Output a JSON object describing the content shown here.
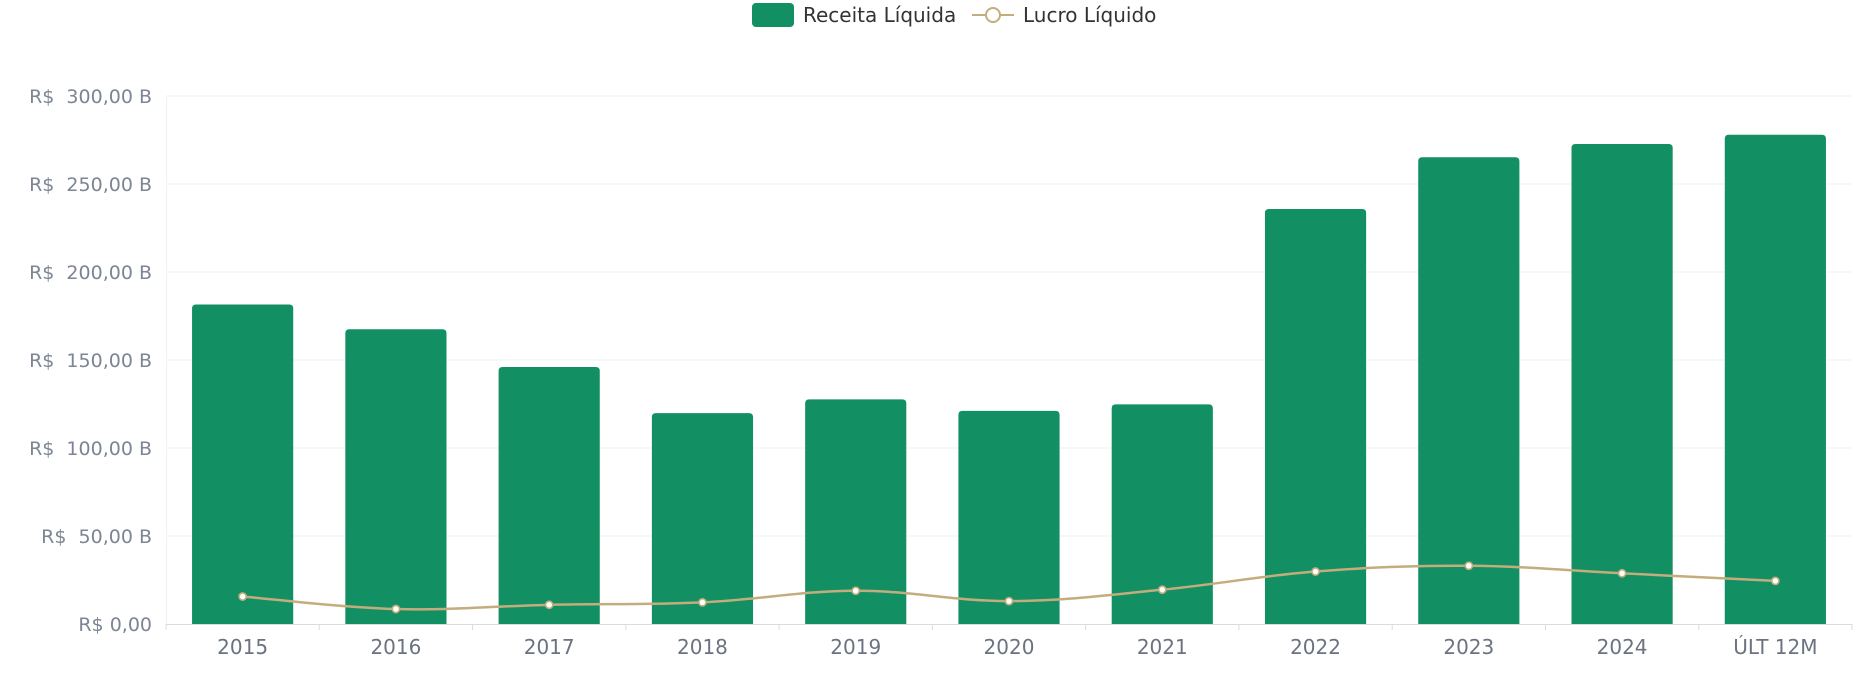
{
  "chart_data": {
    "type": "bar",
    "categories": [
      "2015",
      "2016",
      "2017",
      "2018",
      "2019",
      "2020",
      "2021",
      "2022",
      "2023",
      "2024",
      "ÚLT 12M"
    ],
    "series": [
      {
        "name": "Receita Líquida",
        "type": "bar",
        "color": "#128f63",
        "values": [
          181.5,
          167.5,
          146.0,
          119.8,
          127.6,
          121.1,
          124.8,
          235.8,
          265.2,
          272.7,
          278.0
        ]
      },
      {
        "name": "Lucro Líquido",
        "type": "line",
        "color": "#c3ad7c",
        "values": [
          15.6,
          8.5,
          10.9,
          12.3,
          18.9,
          13.0,
          19.5,
          29.8,
          33.1,
          28.8,
          24.5
        ]
      }
    ],
    "ylim": [
      0,
      300
    ],
    "yticks": [
      {
        "value": 0,
        "label": "R$ 0,00"
      },
      {
        "value": 50,
        "label": "R$  50,00 B"
      },
      {
        "value": 100,
        "label": "R$  100,00 B"
      },
      {
        "value": 150,
        "label": "R$  150,00 B"
      },
      {
        "value": 200,
        "label": "R$  200,00 B"
      },
      {
        "value": 250,
        "label": "R$  250,00 B"
      },
      {
        "value": 300,
        "label": "R$  300,00 B"
      }
    ],
    "legend_position": "top-center",
    "grid": true
  }
}
